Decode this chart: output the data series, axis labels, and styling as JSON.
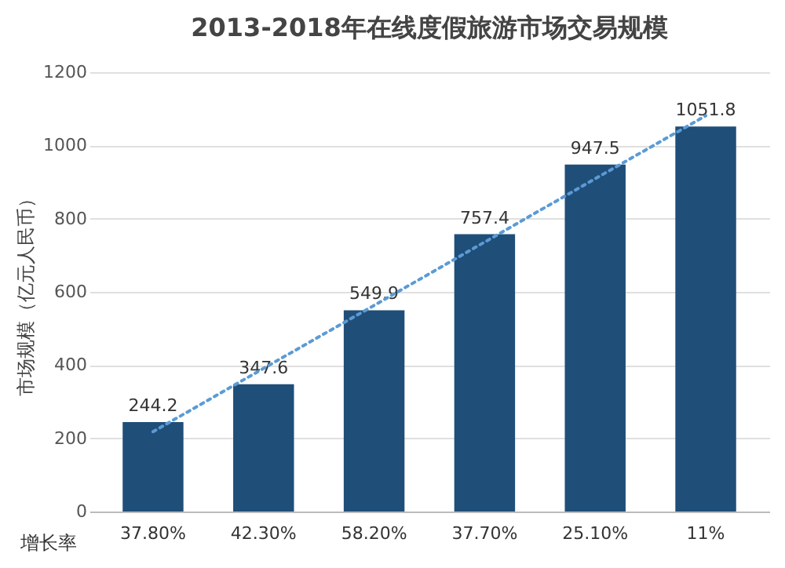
{
  "chart_data": {
    "type": "bar",
    "title": "2013-2018年在线度假旅游市场交易规模",
    "ylabel": "市场规模（亿元人民币）",
    "categories": [
      "37.80%",
      "42.30%",
      "58.20%",
      "37.70%",
      "25.10%",
      "11%"
    ],
    "series": [
      {
        "color": "#1f4e79",
        "values": [
          244.2,
          347.6,
          549.9,
          757.4,
          947.5,
          1051.8
        ],
        "value_labels": [
          "244.2",
          "347.6",
          "549.9",
          "757.4",
          "947.5",
          "1051.8"
        ]
      },
      {
        "type": "line",
        "color": "#5b9bd5",
        "line_style": "dotted",
        "values": [
          218,
          391,
          563,
          736,
          909,
          1081
        ]
      }
    ],
    "annotations": [
      "增长率"
    ],
    "ylim": [
      0,
      1200
    ],
    "yticks": [
      0,
      200,
      400,
      600,
      800,
      1000,
      1200
    ],
    "grid": "y"
  }
}
